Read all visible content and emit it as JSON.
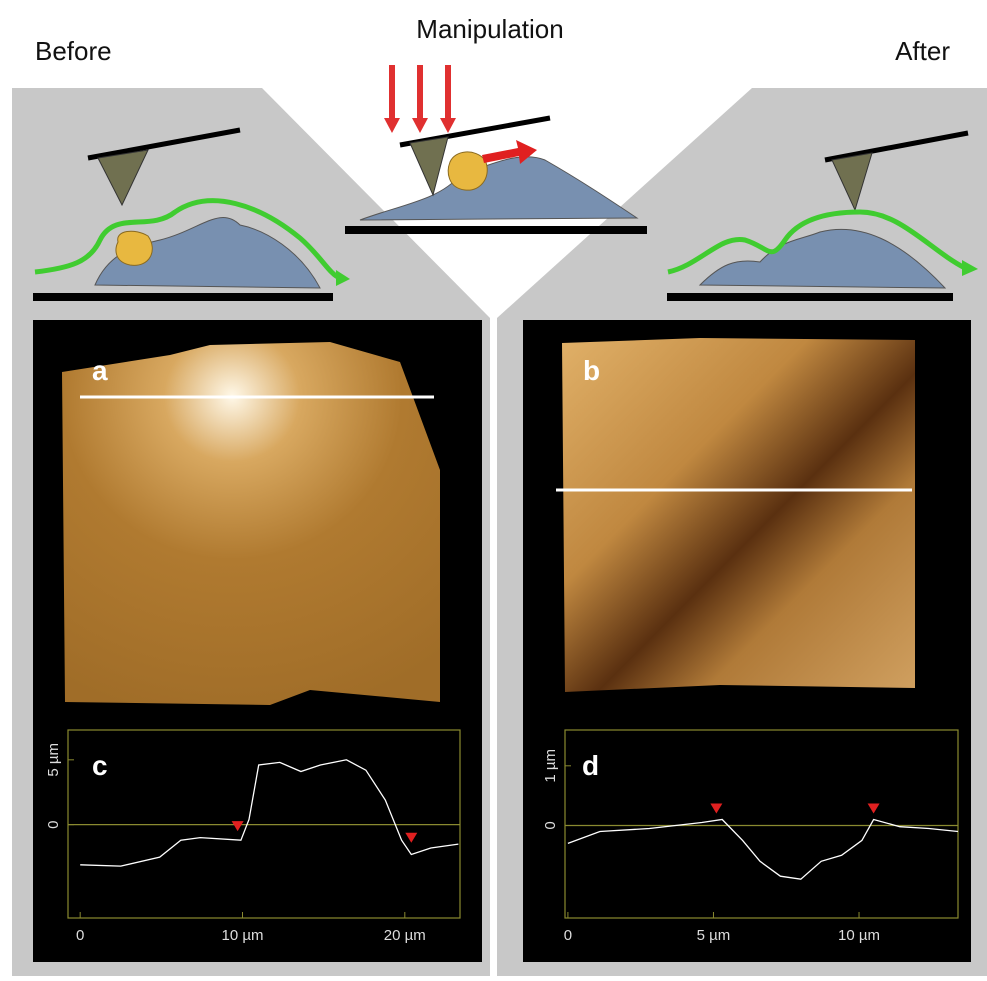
{
  "header": {
    "before": "Before",
    "manipulation": "Manipulation",
    "after": "After"
  },
  "panels": {
    "a": "a",
    "b": "b",
    "c": "c",
    "d": "d"
  },
  "chart_data": [
    {
      "type": "line",
      "color": "#ffffff",
      "x": [
        0,
        2.5,
        4.9,
        6.2,
        7.4,
        9.9,
        10.4,
        11,
        12.3,
        13.6,
        14.8,
        16.4,
        17.6,
        18.8,
        19.8,
        20.4,
        21.6,
        23.3
      ],
      "values": [
        -3.1,
        -3.2,
        -2.5,
        -1.2,
        -1.0,
        -1.2,
        0.4,
        4.6,
        4.8,
        4.1,
        4.6,
        5.0,
        4.2,
        1.9,
        -1.2,
        -2.3,
        -1.8,
        -1.5
      ],
      "markers": {
        "x": [
          9.7,
          20.4
        ],
        "values": [
          -0.5,
          -1.4
        ],
        "color": "#e02020"
      },
      "xlim": [
        -0.75,
        23.4
      ],
      "ylim": [
        -7.2,
        7.3
      ],
      "xticks": [
        0,
        {
          "value": 10,
          "label": "10 µm"
        },
        {
          "value": 20,
          "label": "20 µm"
        }
      ],
      "yticks": [
        0,
        {
          "value": 5,
          "label": "5 µm"
        }
      ],
      "zero_line": true
    },
    {
      "type": "line",
      "color": "#ffffff",
      "x": [
        0,
        1.1,
        2.8,
        4.6,
        5.3,
        6,
        6.6,
        7.3,
        8,
        8.7,
        9.4,
        10.1,
        10.5,
        11.4,
        12.4,
        13.4
      ],
      "values": [
        -0.3,
        -0.1,
        -0.05,
        0.05,
        0.1,
        -0.25,
        -0.6,
        -0.85,
        -0.9,
        -0.6,
        -0.5,
        -0.25,
        0.1,
        -0.02,
        -0.05,
        -0.1
      ],
      "markers": {
        "x": [
          5.1,
          10.5
        ],
        "values": [
          0.2,
          0.2
        ],
        "color": "#e02020"
      },
      "xlim": [
        -0.1,
        13.4
      ],
      "ylim": [
        -1.55,
        1.6
      ],
      "xticks": [
        0,
        {
          "value": 5,
          "label": "5 µm"
        },
        {
          "value": 10,
          "label": "10 µm"
        }
      ],
      "yticks": [
        0,
        {
          "value": 1,
          "label": "1 µm"
        }
      ],
      "zero_line": true
    }
  ]
}
